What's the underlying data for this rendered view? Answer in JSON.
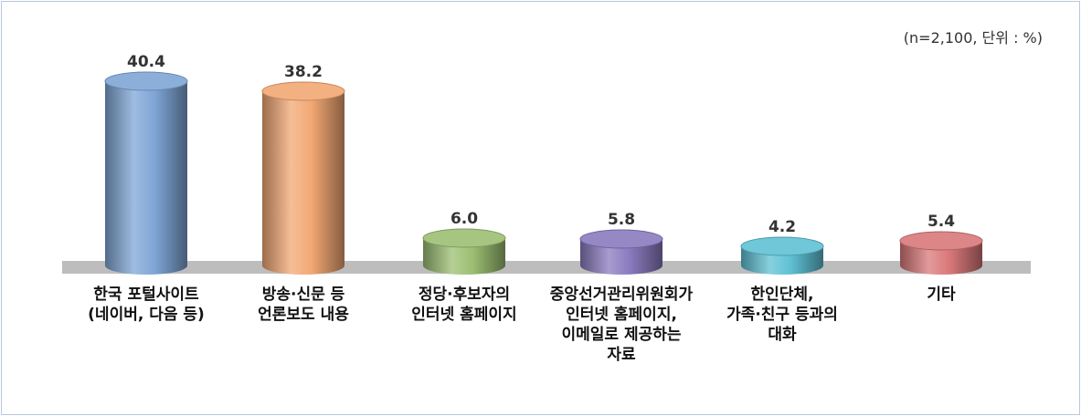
{
  "note": "(n=2,100, 단위 : %)",
  "chart_data": {
    "type": "bar",
    "categories": [
      [
        "한국 포털사이트",
        "(네이버, 다음 등)"
      ],
      [
        "방송·신문 등",
        "언론보도 내용"
      ],
      [
        "정당·후보자의",
        "인터넷 홈페이지"
      ],
      [
        "중앙선거관리위원회가",
        "인터넷 홈페이지,",
        "이메일로 제공하는",
        "자료"
      ],
      [
        "한인단체,",
        "가족·친구 등과의",
        "대화"
      ],
      [
        "기타"
      ]
    ],
    "values": [
      40.4,
      38.2,
      6.0,
      5.8,
      4.2,
      5.4
    ],
    "value_labels": [
      "40.4",
      "38.2",
      "6.0",
      "5.8",
      "4.2",
      "5.4"
    ],
    "ylim": [
      0,
      42
    ],
    "colors": [
      "#7fa6d6",
      "#f2a874",
      "#9cbf73",
      "#8a7bbf",
      "#5fc1d4",
      "#d9787a"
    ]
  }
}
